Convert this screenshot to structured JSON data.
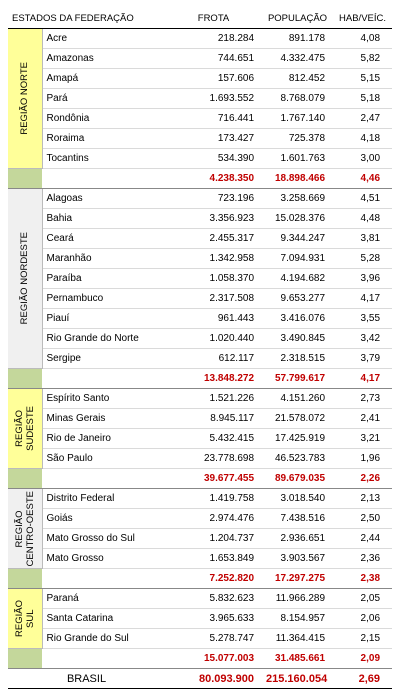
{
  "header": [
    "ESTADOS DA FEDERAÇÃO",
    "FROTA",
    "POPULAÇÃO",
    "HAB/VEÍC."
  ],
  "regions": [
    {
      "name": [
        "REGIÃO NORTE"
      ],
      "shade": "#ffff99",
      "states": [
        [
          "Acre",
          "218.284",
          "891.178",
          "4,08"
        ],
        [
          "Amazonas",
          "744.651",
          "4.332.475",
          "5,82"
        ],
        [
          "Amapá",
          "157.606",
          "812.452",
          "5,15"
        ],
        [
          "Pará",
          "1.693.552",
          "8.768.079",
          "5,18"
        ],
        [
          "Rondônia",
          "716.441",
          "1.767.140",
          "2,47"
        ],
        [
          "Roraima",
          "173.427",
          "725.378",
          "4,18"
        ],
        [
          "Tocantins",
          "534.390",
          "1.601.763",
          "3,00"
        ]
      ],
      "total": [
        "4.238.350",
        "18.898.466",
        "4,46"
      ]
    },
    {
      "name": [
        "REGIÃO NORDESTE"
      ],
      "shade": "#f0f0f0",
      "states": [
        [
          "Alagoas",
          "723.196",
          "3.258.669",
          "4,51"
        ],
        [
          "Bahia",
          "3.356.923",
          "15.028.376",
          "4,48"
        ],
        [
          "Ceará",
          "2.455.317",
          "9.344.247",
          "3,81"
        ],
        [
          "Maranhão",
          "1.342.958",
          "7.094.931",
          "5,28"
        ],
        [
          "Paraíba",
          "1.058.370",
          "4.194.682",
          "3,96"
        ],
        [
          "Pernambuco",
          "2.317.508",
          "9.653.277",
          "4,17"
        ],
        [
          "Piauí",
          "961.443",
          "3.416.076",
          "3,55"
        ],
        [
          "Rio Grande do Norte",
          "1.020.440",
          "3.490.845",
          "3,42"
        ],
        [
          "Sergipe",
          "612.117",
          "2.318.515",
          "3,79"
        ]
      ],
      "total": [
        "13.848.272",
        "57.799.617",
        "4,17"
      ]
    },
    {
      "name": [
        "REGIÃO",
        "SUDESTE"
      ],
      "shade": "#ffff99",
      "states": [
        [
          "Espírito Santo",
          "1.521.226",
          "4.151.260",
          "2,73"
        ],
        [
          "Minas Gerais",
          "8.945.117",
          "21.578.072",
          "2,41"
        ],
        [
          "Rio de Janeiro",
          "5.432.415",
          "17.425.919",
          "3,21"
        ],
        [
          "São Paulo",
          "23.778.698",
          "46.523.783",
          "1,96"
        ]
      ],
      "total": [
        "39.677.455",
        "89.679.035",
        "2,26"
      ]
    },
    {
      "name": [
        "REGIÃO",
        "CENTRO-OESTE"
      ],
      "shade": "#f0f0f0",
      "states": [
        [
          "Distrito Federal",
          "1.419.758",
          "3.018.540",
          "2,13"
        ],
        [
          "Goiás",
          "2.974.476",
          "7.438.516",
          "2,50"
        ],
        [
          "Mato Grosso do Sul",
          "1.204.737",
          "2.936.651",
          "2,44"
        ],
        [
          "Mato Grosso",
          "1.653.849",
          "3.903.567",
          "2,36"
        ]
      ],
      "total": [
        "7.252.820",
        "17.297.275",
        "2,38"
      ]
    },
    {
      "name": [
        "REGIÃO",
        "SUL"
      ],
      "shade": "#ffff99",
      "states": [
        [
          "Paraná",
          "5.832.623",
          "11.966.289",
          "2,05"
        ],
        [
          "Santa Catarina",
          "3.965.633",
          "8.154.957",
          "2,06"
        ],
        [
          "Rio Grande do Sul",
          "5.278.747",
          "11.364.415",
          "2,15"
        ]
      ],
      "total": [
        "15.077.003",
        "31.485.661",
        "2,09"
      ]
    }
  ],
  "brasil": {
    "label": "BRASIL",
    "values": [
      "80.093.900",
      "215.160.054",
      "2,69"
    ]
  }
}
